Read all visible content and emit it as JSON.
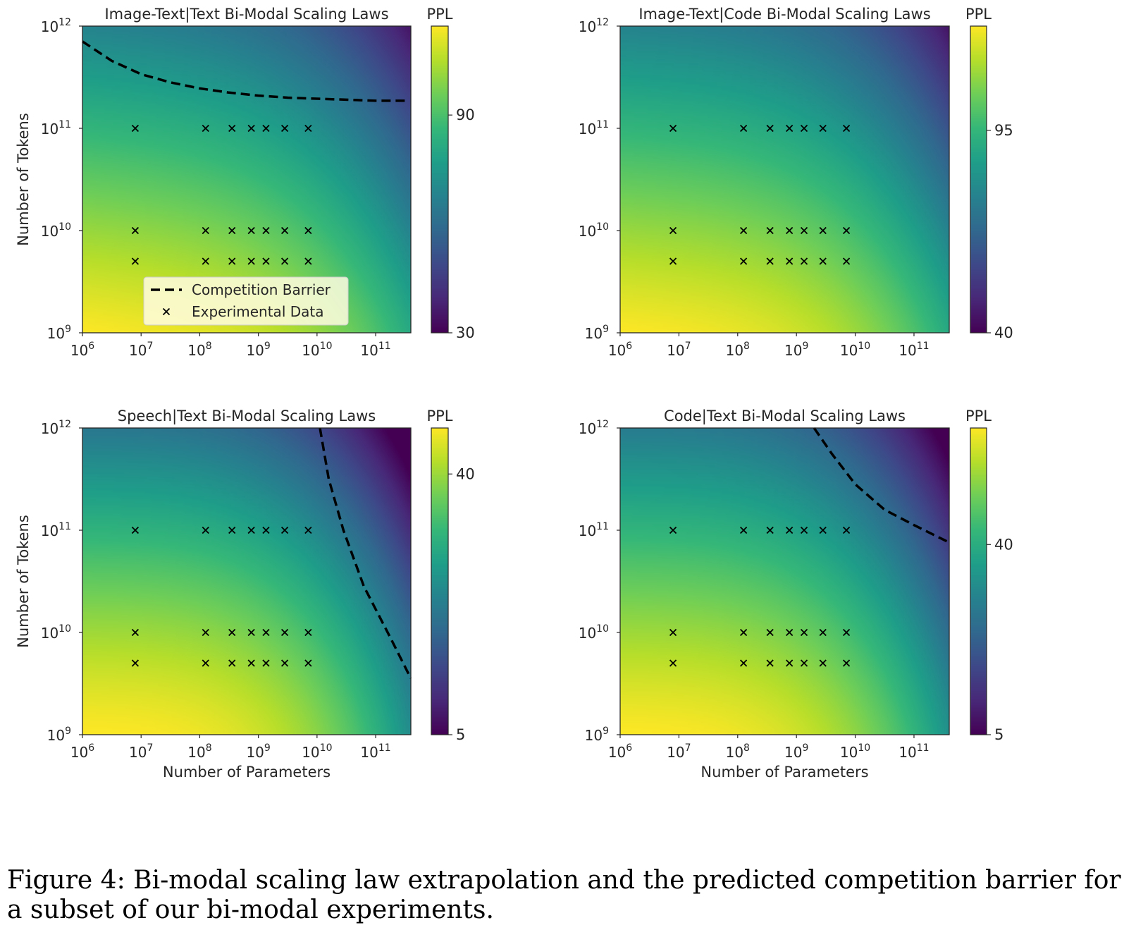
{
  "figure_caption": "Figure 4: Bi-modal scaling law extrapolation and the predicted competition barrier for a subset of our bi-modal experiments.",
  "colormap": [
    "#440154",
    "#482878",
    "#3e4989",
    "#31688e",
    "#26828e",
    "#1f9e89",
    "#35b779",
    "#6ece58",
    "#b5de2b",
    "#fde725"
  ],
  "legend": {
    "barrier_label": "Competition Barrier",
    "data_label": "Experimental Data"
  },
  "chart_data": [
    {
      "type": "heatmap",
      "title": "Image-Text|Text Bi-Modal Scaling Laws",
      "xlabel": "",
      "ylabel": "Number of Tokens",
      "x_scale": "log",
      "y_scale": "log",
      "xlim_log10": [
        6,
        11.6
      ],
      "ylim_log10": [
        9,
        12
      ],
      "x_ticks": [
        {
          "base": "10",
          "exp": "6",
          "v": 6
        },
        {
          "base": "10",
          "exp": "7",
          "v": 7
        },
        {
          "base": "10",
          "exp": "8",
          "v": 8
        },
        {
          "base": "10",
          "exp": "9",
          "v": 9
        },
        {
          "base": "10",
          "exp": "10",
          "v": 10
        },
        {
          "base": "10",
          "exp": "11",
          "v": 11
        }
      ],
      "y_ticks": [
        {
          "base": "10",
          "exp": "9",
          "v": 9
        },
        {
          "base": "10",
          "exp": "10",
          "v": 10
        },
        {
          "base": "10",
          "exp": "11",
          "v": 11
        },
        {
          "base": "10",
          "exp": "12",
          "v": 12
        }
      ],
      "colorbar": {
        "label": "PPL",
        "ticks": [
          {
            "label": "30",
            "frac": 0
          },
          {
            "label": "90",
            "frac": 0.71
          }
        ]
      },
      "surface": {
        "A": 0.55,
        "a": 1.15,
        "B": 0.32,
        "b": 3.4,
        "c": 0.08
      },
      "experimental_params_log10": [
        6.9,
        8.1,
        8.55,
        8.88,
        9.13,
        9.45,
        9.85
      ],
      "experimental_tokens_log10": [
        9.7,
        10,
        11
      ],
      "barrier_log10": [
        [
          6,
          11.85
        ],
        [
          6.5,
          11.66
        ],
        [
          7,
          11.53
        ],
        [
          7.5,
          11.45
        ],
        [
          8,
          11.39
        ],
        [
          8.5,
          11.35
        ],
        [
          9,
          11.32
        ],
        [
          9.5,
          11.3
        ],
        [
          10,
          11.29
        ],
        [
          10.5,
          11.28
        ],
        [
          11,
          11.27
        ],
        [
          11.5,
          11.27
        ]
      ],
      "show_legend": true
    },
    {
      "type": "heatmap",
      "title": "Image-Text|Code Bi-Modal Scaling Laws",
      "xlabel": "",
      "ylabel": "",
      "x_scale": "log",
      "y_scale": "log",
      "xlim_log10": [
        6,
        11.6
      ],
      "ylim_log10": [
        9,
        12
      ],
      "x_ticks": [
        {
          "base": "10",
          "exp": "6",
          "v": 6
        },
        {
          "base": "10",
          "exp": "7",
          "v": 7
        },
        {
          "base": "10",
          "exp": "8",
          "v": 8
        },
        {
          "base": "10",
          "exp": "9",
          "v": 9
        },
        {
          "base": "10",
          "exp": "10",
          "v": 10
        },
        {
          "base": "10",
          "exp": "11",
          "v": 11
        }
      ],
      "y_ticks": [
        {
          "base": "10",
          "exp": "9",
          "v": 9
        },
        {
          "base": "10",
          "exp": "10",
          "v": 10
        },
        {
          "base": "10",
          "exp": "11",
          "v": 11
        },
        {
          "base": "10",
          "exp": "12",
          "v": 12
        }
      ],
      "colorbar": {
        "label": "PPL",
        "ticks": [
          {
            "label": "40",
            "frac": 0
          },
          {
            "label": "95",
            "frac": 0.66
          }
        ]
      },
      "surface": {
        "A": 0.55,
        "a": 1.15,
        "B": 0.34,
        "b": 3.4,
        "c": 0.06
      },
      "experimental_params_log10": [
        6.9,
        8.1,
        8.55,
        8.88,
        9.13,
        9.45,
        9.85
      ],
      "experimental_tokens_log10": [
        9.7,
        10,
        11
      ],
      "barrier_log10": [],
      "show_legend": false
    },
    {
      "type": "heatmap",
      "title": "Speech|Text Bi-Modal Scaling Laws",
      "xlabel": "Number of Parameters",
      "ylabel": "Number of Tokens",
      "x_scale": "log",
      "y_scale": "log",
      "xlim_log10": [
        6,
        11.6
      ],
      "ylim_log10": [
        9,
        12
      ],
      "x_ticks": [
        {
          "base": "10",
          "exp": "6",
          "v": 6
        },
        {
          "base": "10",
          "exp": "7",
          "v": 7
        },
        {
          "base": "10",
          "exp": "8",
          "v": 8
        },
        {
          "base": "10",
          "exp": "9",
          "v": 9
        },
        {
          "base": "10",
          "exp": "10",
          "v": 10
        },
        {
          "base": "10",
          "exp": "11",
          "v": 11
        }
      ],
      "y_ticks": [
        {
          "base": "10",
          "exp": "9",
          "v": 9
        },
        {
          "base": "10",
          "exp": "10",
          "v": 10
        },
        {
          "base": "10",
          "exp": "11",
          "v": 11
        },
        {
          "base": "10",
          "exp": "12",
          "v": 12
        }
      ],
      "colorbar": {
        "label": "PPL",
        "ticks": [
          {
            "label": "5",
            "frac": 0
          },
          {
            "label": "40",
            "frac": 0.85
          }
        ]
      },
      "surface": {
        "A": 0.6,
        "a": 1.3,
        "B": 0.5,
        "b": 3.3,
        "c": 0.02
      },
      "experimental_params_log10": [
        6.9,
        8.1,
        8.55,
        8.88,
        9.13,
        9.45,
        9.85
      ],
      "experimental_tokens_log10": [
        9.7,
        10,
        11
      ],
      "barrier_log10": [
        [
          10.05,
          12
        ],
        [
          10.2,
          11.5
        ],
        [
          10.45,
          11
        ],
        [
          10.8,
          10.45
        ],
        [
          11.25,
          9.95
        ],
        [
          11.6,
          9.55
        ]
      ],
      "show_legend": false
    },
    {
      "type": "heatmap",
      "title": "Code|Text Bi-Modal Scaling Laws",
      "xlabel": "Number of Parameters",
      "ylabel": "",
      "x_scale": "log",
      "y_scale": "log",
      "xlim_log10": [
        6,
        11.6
      ],
      "ylim_log10": [
        9,
        12
      ],
      "x_ticks": [
        {
          "base": "10",
          "exp": "6",
          "v": 6
        },
        {
          "base": "10",
          "exp": "7",
          "v": 7
        },
        {
          "base": "10",
          "exp": "8",
          "v": 8
        },
        {
          "base": "10",
          "exp": "9",
          "v": 9
        },
        {
          "base": "10",
          "exp": "10",
          "v": 10
        },
        {
          "base": "10",
          "exp": "11",
          "v": 11
        }
      ],
      "y_ticks": [
        {
          "base": "10",
          "exp": "9",
          "v": 9
        },
        {
          "base": "10",
          "exp": "10",
          "v": 10
        },
        {
          "base": "10",
          "exp": "11",
          "v": 11
        },
        {
          "base": "10",
          "exp": "12",
          "v": 12
        }
      ],
      "colorbar": {
        "label": "PPL",
        "ticks": [
          {
            "label": "5",
            "frac": 0
          },
          {
            "label": "40",
            "frac": 0.62
          }
        ]
      },
      "surface": {
        "A": 0.58,
        "a": 1.25,
        "B": 0.48,
        "b": 3.3,
        "c": 0.02
      },
      "experimental_params_log10": [
        6.9,
        8.1,
        8.55,
        8.88,
        9.13,
        9.45,
        9.85
      ],
      "experimental_tokens_log10": [
        9.7,
        10,
        11
      ],
      "barrier_log10": [
        [
          9.3,
          12
        ],
        [
          9.6,
          11.75
        ],
        [
          10,
          11.45
        ],
        [
          10.5,
          11.2
        ],
        [
          11,
          11.05
        ],
        [
          11.6,
          10.88
        ]
      ],
      "show_legend": false
    }
  ]
}
